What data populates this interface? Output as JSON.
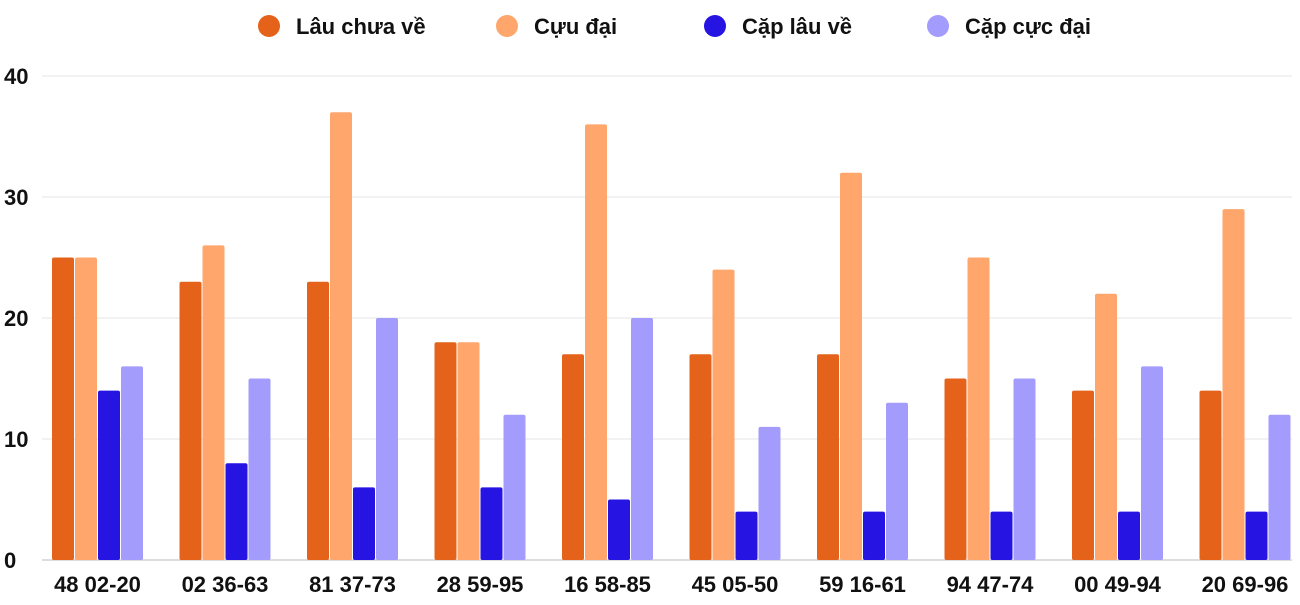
{
  "chart_data": {
    "type": "bar",
    "title": "",
    "xlabel": "",
    "ylabel": "",
    "ylim": [
      0,
      40
    ],
    "yticks": [
      0,
      10,
      20,
      30,
      40
    ],
    "grid": true,
    "legend_position": "top",
    "categories": [
      "48 02-20",
      "02 36-63",
      "81 37-73",
      "28 59-95",
      "16 58-85",
      "45 05-50",
      "59 16-61",
      "94 47-74",
      "00 49-94",
      "20 69-96"
    ],
    "series": [
      {
        "name": "Lâu chưa về",
        "color": "#e4621a",
        "values": [
          25,
          23,
          23,
          18,
          17,
          17,
          17,
          15,
          14,
          14
        ]
      },
      {
        "name": "Cựu đại",
        "color": "#ffa66c",
        "values": [
          25,
          26,
          37,
          18,
          36,
          24,
          32,
          25,
          22,
          29
        ]
      },
      {
        "name": "Cặp lâu về",
        "color": "#2614e2",
        "values": [
          14,
          8,
          6,
          6,
          5,
          4,
          4,
          4,
          4,
          4
        ]
      },
      {
        "name": "Cặp cực đại",
        "color": "#a39cfd",
        "values": [
          16,
          15,
          20,
          12,
          20,
          11,
          13,
          15,
          16,
          12
        ]
      }
    ]
  }
}
